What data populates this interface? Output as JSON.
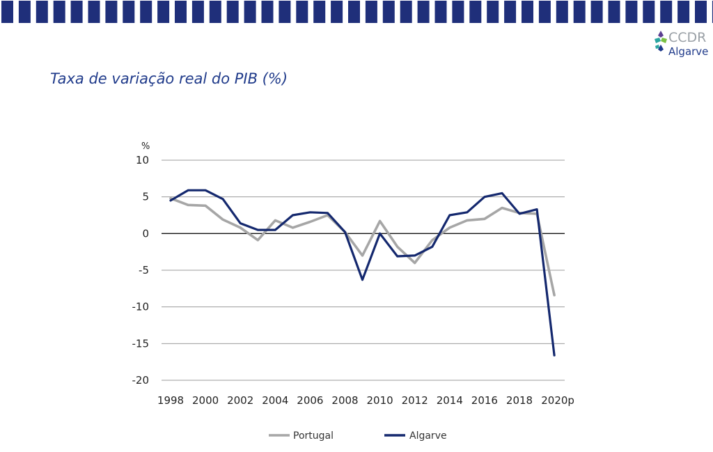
{
  "page": {
    "title": "Taxa de variação real do PIB (%)",
    "logo": {
      "line1": "CCDR",
      "line2": "Algarve"
    },
    "band_color": "#1f2f7a"
  },
  "chart_data": {
    "type": "line",
    "title": "Taxa de variação real do PIB (%)",
    "xlabel": "",
    "ylabel": "%",
    "x": [
      "1998",
      "1999",
      "2000",
      "2001",
      "2002",
      "2003",
      "2004",
      "2005",
      "2006",
      "2007",
      "2008",
      "2009",
      "2010",
      "2011",
      "2012",
      "2013",
      "2014",
      "2015",
      "2016",
      "2017",
      "2018",
      "2019",
      "2020p"
    ],
    "x_tick_labels": [
      "1998",
      "2000",
      "2002",
      "2004",
      "2006",
      "2008",
      "2010",
      "2012",
      "2014",
      "2016",
      "2018",
      "2020p"
    ],
    "y_ticks": [
      10,
      5,
      0,
      -5,
      -10,
      -15,
      -20
    ],
    "ylim": [
      -20,
      10
    ],
    "grid": true,
    "legend_position": "bottom",
    "series": [
      {
        "name": "Portugal",
        "color": "#a6a6a6",
        "values": [
          4.8,
          3.9,
          3.8,
          1.9,
          0.8,
          -0.9,
          1.8,
          0.8,
          1.6,
          2.5,
          0.2,
          -3.0,
          1.7,
          -1.8,
          -4.0,
          -0.9,
          0.8,
          1.8,
          2.0,
          3.5,
          2.8,
          2.7,
          -8.4
        ]
      },
      {
        "name": "Algarve",
        "color": "#14286e",
        "values": [
          4.5,
          5.9,
          5.9,
          4.7,
          1.4,
          0.5,
          0.5,
          2.5,
          2.9,
          2.8,
          0.2,
          -6.3,
          0.0,
          -3.1,
          -3.0,
          -1.8,
          2.5,
          2.9,
          5.0,
          5.5,
          2.7,
          3.3,
          -16.6
        ]
      }
    ]
  }
}
